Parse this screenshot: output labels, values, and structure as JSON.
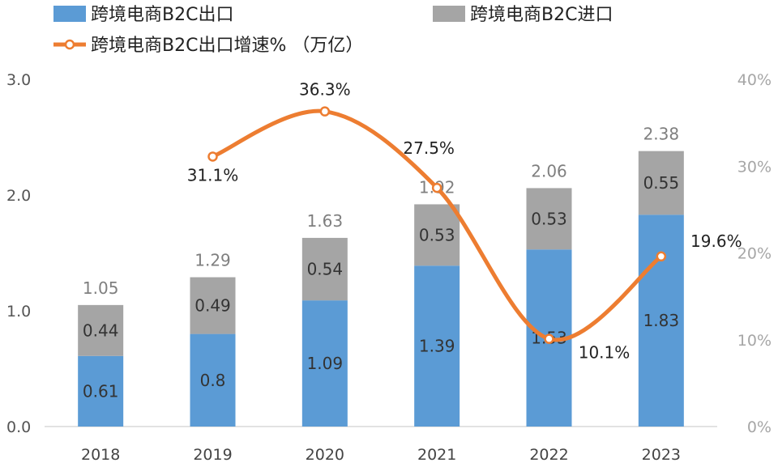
{
  "chart_data": {
    "type": "bar",
    "stacked": true,
    "categories": [
      "2018",
      "2019",
      "2020",
      "2021",
      "2022",
      "2023"
    ],
    "series": [
      {
        "name": "跨境电商B2C出口",
        "type": "bar",
        "axis": "left",
        "color": "#5b9bd5",
        "values": [
          0.61,
          0.8,
          1.09,
          1.39,
          1.53,
          1.83
        ]
      },
      {
        "name": "跨境电商B2C进口",
        "type": "bar",
        "axis": "left",
        "color": "#a5a5a5",
        "values": [
          0.44,
          0.49,
          0.54,
          0.53,
          0.53,
          0.55
        ]
      },
      {
        "name": "跨境电商B2C出口增速%",
        "type": "line",
        "axis": "right",
        "color": "#ed7d31",
        "values": [
          null,
          31.1,
          36.3,
          27.5,
          10.1,
          19.6
        ]
      }
    ],
    "bar_labels": {
      "bottom": [
        "0.61",
        "0.8",
        "1.09",
        "1.39",
        "1.53",
        "1.83"
      ],
      "top": [
        "0.44",
        "0.49",
        "0.54",
        "0.53",
        "0.53",
        "0.55"
      ]
    },
    "totals": [
      "1.05",
      "1.29",
      "1.63",
      "1.92",
      "2.06",
      "2.38"
    ],
    "rate_labels": [
      "",
      "31.1%",
      "36.3%",
      "27.5%",
      "10.1%",
      "19.6%"
    ],
    "legend": {
      "export": "跨境电商B2C出口",
      "import": "跨境电商B2C进口",
      "rate": "跨境电商B2C出口增速% （万亿）"
    },
    "y_left": {
      "range": [
        0,
        3
      ],
      "ticks": [
        "0.0",
        "1.0",
        "2.0",
        "3.0"
      ]
    },
    "y_right": {
      "range": [
        0,
        40
      ],
      "ticks": [
        "0%",
        "10%",
        "20%",
        "30%",
        "40%"
      ]
    },
    "grid": false,
    "legend_position": "top-left"
  }
}
